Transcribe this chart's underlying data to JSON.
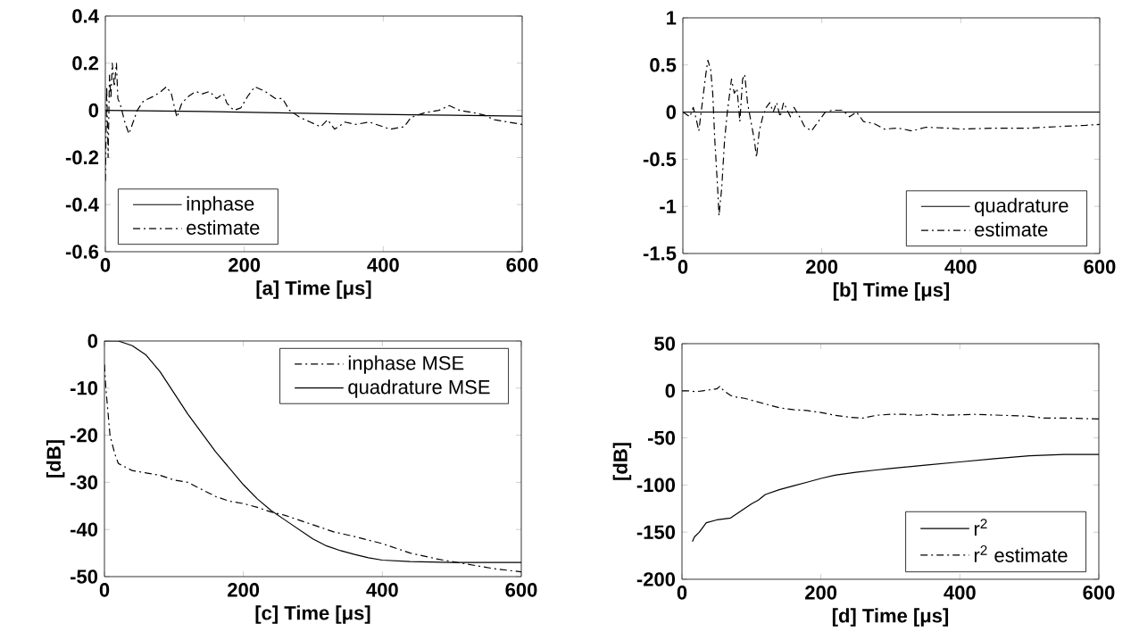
{
  "chart_data": [
    {
      "type": "line",
      "xlabel": "[a]  Time [μs]",
      "xlim": [
        0,
        600
      ],
      "xticks": [
        0,
        200,
        400,
        600
      ],
      "ylim": [
        -0.6,
        0.4
      ],
      "yticks": [
        -0.6,
        -0.4,
        -0.2,
        0,
        0.2,
        0.4
      ],
      "legend": "bottom left",
      "series": [
        {
          "name": "inphase",
          "color": "#000000",
          "line_style": "solid",
          "x": [
            0,
            140,
            340,
            470,
            600
          ],
          "values": [
            0,
            -0.005,
            -0.015,
            -0.02,
            -0.025
          ]
        },
        {
          "name": "estimate",
          "color": "#000000",
          "line_style": "dashed",
          "x": [
            0,
            2,
            4,
            6,
            8,
            10,
            13,
            16,
            18,
            22,
            28,
            34,
            40,
            46,
            55,
            70,
            80,
            88,
            95,
            103,
            110,
            120,
            130,
            140,
            150,
            160,
            170,
            175,
            185,
            195,
            205,
            215,
            230,
            245,
            255,
            265,
            280,
            295,
            310,
            320,
            330,
            345,
            360,
            380,
            400,
            410,
            430,
            440,
            460,
            480,
            495,
            510,
            530,
            545,
            560,
            580,
            600
          ],
          "values": [
            -0.3,
            0.1,
            -0.2,
            0.15,
            0.05,
            0.2,
            0.1,
            0.2,
            0.05,
            0.02,
            -0.05,
            -0.1,
            -0.05,
            0,
            0.04,
            0.06,
            0.08,
            0.1,
            0.07,
            -0.03,
            0.03,
            0.06,
            0.08,
            0.07,
            0.08,
            0.05,
            0.07,
            0.03,
            0,
            0.01,
            0.06,
            0.1,
            0.08,
            0.05,
            0.05,
            0,
            -0.03,
            -0.05,
            -0.07,
            -0.04,
            -0.08,
            -0.05,
            -0.06,
            -0.05,
            -0.07,
            -0.08,
            -0.07,
            -0.03,
            -0.01,
            0,
            0.02,
            0,
            -0.01,
            -0.02,
            -0.04,
            -0.05,
            -0.06
          ]
        }
      ]
    },
    {
      "type": "line",
      "xlabel": "[b]  Time [μs]",
      "xlim": [
        0,
        600
      ],
      "xticks": [
        0,
        200,
        400,
        600
      ],
      "ylim": [
        -1.5,
        1
      ],
      "yticks": [
        -1.5,
        -1,
        -0.5,
        0,
        0.5,
        1
      ],
      "legend": "bottom right",
      "series": [
        {
          "name": "quadrature",
          "color": "#000000",
          "line_style": "solid",
          "x": [
            0,
            600
          ],
          "values": [
            0,
            0
          ]
        },
        {
          "name": "estimate",
          "color": "#000000",
          "line_style": "dashed",
          "x": [
            0,
            10,
            15,
            20,
            23,
            28,
            33,
            36,
            40,
            43,
            46,
            50,
            52,
            56,
            60,
            64,
            70,
            74,
            78,
            82,
            86,
            89,
            93,
            98,
            103,
            106,
            110,
            115,
            120,
            125,
            130,
            135,
            140,
            145,
            155,
            160,
            168,
            175,
            185,
            195,
            205,
            215,
            230,
            240,
            250,
            260,
            275,
            290,
            310,
            330,
            350,
            380,
            400,
            450,
            500,
            550,
            580,
            600
          ],
          "values": [
            0,
            -0.05,
            0.05,
            -0.1,
            -0.2,
            0.1,
            0.4,
            0.55,
            0.45,
            0.2,
            -0.3,
            -0.8,
            -1.1,
            -0.8,
            -0.3,
            0,
            0.35,
            0.2,
            0.25,
            -0.1,
            0.35,
            0.4,
            0.1,
            -0.1,
            -0.3,
            -0.48,
            -0.2,
            -0.05,
            0.05,
            0.1,
            0,
            0.1,
            -0.05,
            0.1,
            -0.05,
            0.05,
            -0.05,
            -0.15,
            -0.2,
            -0.1,
            0,
            0.02,
            0.02,
            -0.05,
            0,
            -0.1,
            -0.12,
            -0.18,
            -0.17,
            -0.2,
            -0.16,
            -0.17,
            -0.18,
            -0.17,
            -0.17,
            -0.15,
            -0.14,
            -0.13
          ]
        }
      ]
    },
    {
      "type": "line",
      "xlabel": "[c]  Time [μs]",
      "ylabel": "[dB]",
      "xlim": [
        0,
        600
      ],
      "xticks": [
        0,
        200,
        400,
        600
      ],
      "ylim": [
        -50,
        0
      ],
      "yticks": [
        -50,
        -40,
        -30,
        -20,
        -10,
        0
      ],
      "legend": "top right",
      "series": [
        {
          "name": "inphase MSE",
          "color": "#000000",
          "line_style": "dashed",
          "x": [
            0,
            2,
            5,
            8,
            15,
            20,
            40,
            60,
            80,
            100,
            120,
            140,
            160,
            180,
            200,
            220,
            240,
            260,
            280,
            300,
            330,
            360,
            400,
            440,
            480,
            520,
            560,
            600
          ],
          "values": [
            -5,
            -10,
            -15,
            -20,
            -24,
            -26,
            -27.5,
            -28,
            -28.5,
            -29.5,
            -30,
            -31.5,
            -33,
            -34,
            -34.5,
            -35.3,
            -36.3,
            -37,
            -38,
            -39,
            -40.5,
            -41.5,
            -43,
            -45,
            -46.3,
            -47.3,
            -48.3,
            -49
          ]
        },
        {
          "name": "quadrature MSE",
          "color": "#000000",
          "line_style": "solid",
          "x": [
            0,
            20,
            40,
            60,
            80,
            100,
            120,
            140,
            160,
            180,
            200,
            220,
            240,
            260,
            280,
            300,
            320,
            340,
            360,
            380,
            400,
            440,
            500,
            600
          ],
          "values": [
            0,
            0,
            -1,
            -3,
            -6.5,
            -11,
            -15.5,
            -19.5,
            -23.5,
            -27,
            -30.5,
            -33.5,
            -36,
            -38,
            -40,
            -42,
            -43.5,
            -44.5,
            -45.3,
            -46,
            -46.5,
            -46.8,
            -47,
            -47
          ]
        }
      ]
    },
    {
      "type": "line",
      "xlabel": "[d]  Time [μs]",
      "ylabel": "[dB]",
      "xlim": [
        0,
        600
      ],
      "xticks": [
        0,
        200,
        400,
        600
      ],
      "ylim": [
        -200,
        50
      ],
      "yticks": [
        -200,
        -150,
        -100,
        -50,
        0,
        50
      ],
      "legend": "bottom right",
      "series": [
        {
          "name": "r$^{2}$",
          "color": "#000000",
          "line_style": "solid",
          "x": [
            15,
            18,
            25,
            30,
            35,
            50,
            70,
            80,
            90,
            100,
            110,
            120,
            140,
            160,
            180,
            200,
            220,
            250,
            280,
            300,
            350,
            400,
            450,
            500,
            550,
            600
          ],
          "values": [
            -160,
            -155,
            -150,
            -145,
            -140,
            -137,
            -135,
            -130,
            -125,
            -120,
            -116,
            -110,
            -105,
            -101,
            -97,
            -93,
            -89.5,
            -86.5,
            -84,
            -82.5,
            -79,
            -75.5,
            -72,
            -69,
            -67.5,
            -67.5
          ]
        },
        {
          "name": "r$^{2}$ estimate",
          "color": "#000000",
          "line_style": "dashed",
          "x": [
            0,
            10,
            20,
            30,
            40,
            50,
            55,
            60,
            70,
            80,
            90,
            100,
            120,
            140,
            160,
            180,
            200,
            220,
            240,
            260,
            280,
            300,
            320,
            340,
            360,
            380,
            420,
            460,
            500,
            520,
            560,
            600
          ],
          "values": [
            0,
            0,
            -1,
            0,
            1,
            2,
            5,
            0,
            -5,
            -7,
            -8,
            -10,
            -14,
            -18,
            -20,
            -21,
            -23,
            -26,
            -28,
            -29,
            -26,
            -25,
            -25,
            -26,
            -25,
            -26,
            -25,
            -26,
            -27,
            -29,
            -29,
            -30
          ]
        }
      ]
    }
  ]
}
